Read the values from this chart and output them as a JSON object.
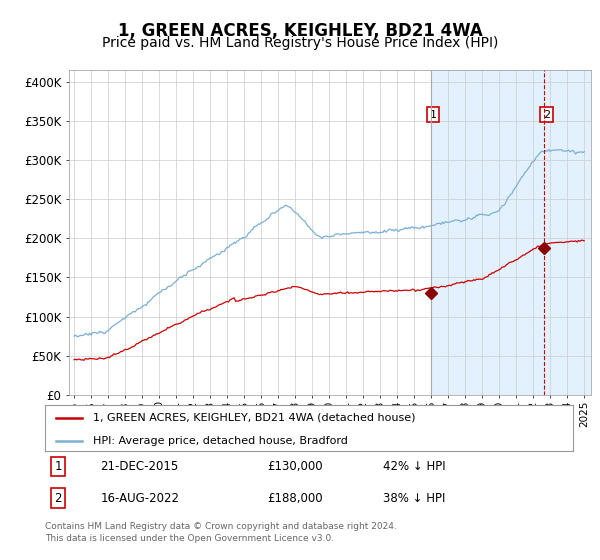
{
  "title": "1, GREEN ACRES, KEIGHLEY, BD21 4WA",
  "subtitle": "Price paid vs. HM Land Registry's House Price Index (HPI)",
  "title_fontsize": 12,
  "subtitle_fontsize": 10,
  "background_color": "#ffffff",
  "grid_color": "#cccccc",
  "legend_entry1": "1, GREEN ACRES, KEIGHLEY, BD21 4WA (detached house)",
  "legend_entry2": "HPI: Average price, detached house, Bradford",
  "red_color": "#cc0000",
  "blue_color": "#7ab0d4",
  "shade_color": "#ddeeff",
  "marker1_date": 2015.97,
  "marker1_value": 130000,
  "marker2_date": 2022.62,
  "marker2_value": 188000,
  "vline1_x": 2015.97,
  "vline2_x": 2022.62,
  "shade_start": 2015.97,
  "shade_end": 2025.4,
  "yticks": [
    0,
    50000,
    100000,
    150000,
    200000,
    250000,
    300000,
    350000,
    400000
  ],
  "ytick_labels": [
    "£0",
    "£50K",
    "£100K",
    "£150K",
    "£200K",
    "£250K",
    "£300K",
    "£350K",
    "£400K"
  ],
  "ylim": [
    0,
    415000
  ],
  "xlim_start": 1994.7,
  "xlim_end": 2025.4,
  "footer_text": "Contains HM Land Registry data © Crown copyright and database right 2024.\nThis data is licensed under the Open Government Licence v3.0."
}
